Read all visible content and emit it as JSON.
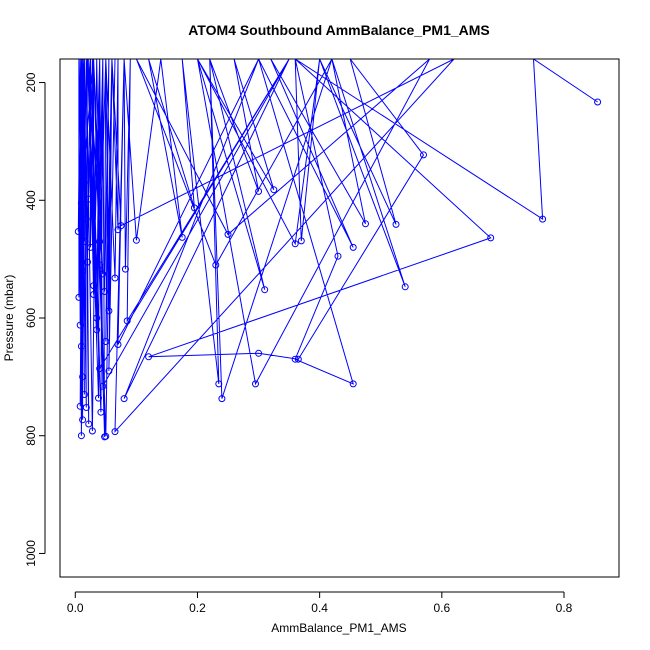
{
  "chart_data": {
    "type": "line",
    "title": "ATOM4 Southbound AmmBalance_PM1_AMS",
    "xlabel": "AmmBalance_PM1_AMS",
    "ylabel": "Pressure (mbar)",
    "xlim": [
      -0.025,
      0.89
    ],
    "ylim": [
      1040,
      160
    ],
    "y_reversed": true,
    "xticks": [
      "0.0",
      "0.2",
      "0.4",
      "0.6",
      "0.8"
    ],
    "xtick_values": [
      0,
      0.2,
      0.4,
      0.6,
      0.8
    ],
    "yticks": [
      "200",
      "400",
      "600",
      "800",
      "1000"
    ],
    "ytick_values": [
      200,
      400,
      600,
      800,
      1000
    ],
    "series_color": "#0000FF",
    "markers": "open-circle",
    "grid": false,
    "series": [
      {
        "values": [
          [
            0.855,
            233
          ],
          [
            0.75,
            160
          ],
          [
            0.765,
            432
          ],
          [
            0.36,
            160
          ],
          [
            0.68,
            464
          ],
          [
            0.12,
            666
          ],
          [
            0.3,
            660
          ],
          [
            0.365,
            670
          ],
          [
            0.57,
            323
          ],
          [
            0.45,
            160
          ],
          [
            0.525,
            441
          ],
          [
            0.4,
            160
          ],
          [
            0.54,
            547
          ],
          [
            0.42,
            160
          ],
          [
            0.475,
            440
          ],
          [
            0.32,
            160
          ],
          [
            0.455,
            480
          ],
          [
            0.3,
            160
          ],
          [
            0.455,
            712
          ],
          [
            0.36,
            670
          ],
          [
            0.43,
            495
          ],
          [
            0.36,
            160
          ],
          [
            0.37,
            469
          ],
          [
            0.4,
            160
          ],
          [
            0.36,
            474
          ],
          [
            0.2,
            160
          ],
          [
            0.325,
            382
          ],
          [
            0.26,
            160
          ],
          [
            0.3,
            385
          ],
          [
            0.22,
            160
          ],
          [
            0.31,
            552
          ],
          [
            0.2,
            160
          ],
          [
            0.295,
            712
          ],
          [
            0.58,
            160
          ],
          [
            0.25,
            458
          ],
          [
            0.1,
            160
          ],
          [
            0.23,
            510
          ],
          [
            0.42,
            160
          ],
          [
            0.24,
            737
          ],
          [
            0.22,
            160
          ],
          [
            0.235,
            712
          ],
          [
            0.175,
            160
          ],
          [
            0.195,
            413
          ],
          [
            0.12,
            160
          ],
          [
            0.175,
            463
          ],
          [
            0.14,
            160
          ],
          [
            0.1,
            468
          ],
          [
            0.08,
            160
          ],
          [
            0.082,
            517
          ],
          [
            0.09,
            160
          ],
          [
            0.085,
            605
          ],
          [
            0.35,
            160
          ],
          [
            0.08,
            737
          ],
          [
            0.3,
            160
          ],
          [
            0.07,
            645
          ],
          [
            0.08,
            160
          ],
          [
            0.065,
            793
          ],
          [
            0.62,
            160
          ],
          [
            0.075,
            443
          ],
          [
            0.06,
            160
          ],
          [
            0.07,
            450
          ],
          [
            0.07,
            160
          ],
          [
            0.065,
            532
          ],
          [
            0.05,
            160
          ],
          [
            0.055,
            588
          ],
          [
            0.06,
            160
          ],
          [
            0.05,
            801
          ],
          [
            0.03,
            160
          ],
          [
            0.048,
            802
          ],
          [
            0.045,
            160
          ],
          [
            0.042,
            760
          ],
          [
            0.02,
            160
          ],
          [
            0.038,
            736
          ],
          [
            0.04,
            160
          ],
          [
            0.045,
            716
          ],
          [
            0.35,
            160
          ],
          [
            0.04,
            686
          ],
          [
            0.025,
            160
          ],
          [
            0.035,
            620
          ],
          [
            0.028,
            160
          ],
          [
            0.03,
            560
          ],
          [
            0.022,
            160
          ],
          [
            0.045,
            525
          ],
          [
            0.03,
            160
          ],
          [
            0.04,
            470
          ],
          [
            0.035,
            160
          ],
          [
            0.028,
            792
          ],
          [
            0.018,
            160
          ],
          [
            0.022,
            780
          ],
          [
            0.015,
            160
          ],
          [
            0.018,
            752
          ],
          [
            0.01,
            160
          ],
          [
            0.015,
            730
          ],
          [
            0.012,
            160
          ],
          [
            0.012,
            700
          ],
          [
            0.008,
            160
          ],
          [
            0.01,
            648
          ],
          [
            0.014,
            160
          ],
          [
            0.008,
            612
          ],
          [
            0.006,
            160
          ],
          [
            0.006,
            565
          ],
          [
            0.01,
            160
          ],
          [
            0.012,
            520
          ],
          [
            0.015,
            160
          ],
          [
            0.016,
            470
          ],
          [
            0.012,
            160
          ],
          [
            0.018,
            432
          ],
          [
            0.02,
            160
          ],
          [
            0.01,
            405
          ],
          [
            0.012,
            160
          ],
          [
            0.015,
            370
          ],
          [
            0.018,
            160
          ],
          [
            0.022,
            398
          ],
          [
            0.03,
            160
          ],
          [
            0.005,
            453
          ],
          [
            0.008,
            160
          ],
          [
            0.01,
            800
          ],
          [
            0.014,
            160
          ],
          [
            0.008,
            750
          ],
          [
            0.012,
            160
          ],
          [
            0.012,
            773
          ],
          [
            0.01,
            160
          ],
          [
            0.02,
            505
          ],
          [
            0.025,
            160
          ],
          [
            0.025,
            480
          ],
          [
            0.03,
            160
          ],
          [
            0.03,
            545
          ],
          [
            0.04,
            160
          ],
          [
            0.035,
            600
          ],
          [
            0.045,
            160
          ],
          [
            0.04,
            510
          ],
          [
            0.05,
            160
          ],
          [
            0.048,
            555
          ],
          [
            0.055,
            160
          ],
          [
            0.05,
            640
          ],
          [
            0.06,
            160
          ],
          [
            0.055,
            690
          ],
          [
            0.065,
            160
          ]
        ]
      }
    ]
  }
}
